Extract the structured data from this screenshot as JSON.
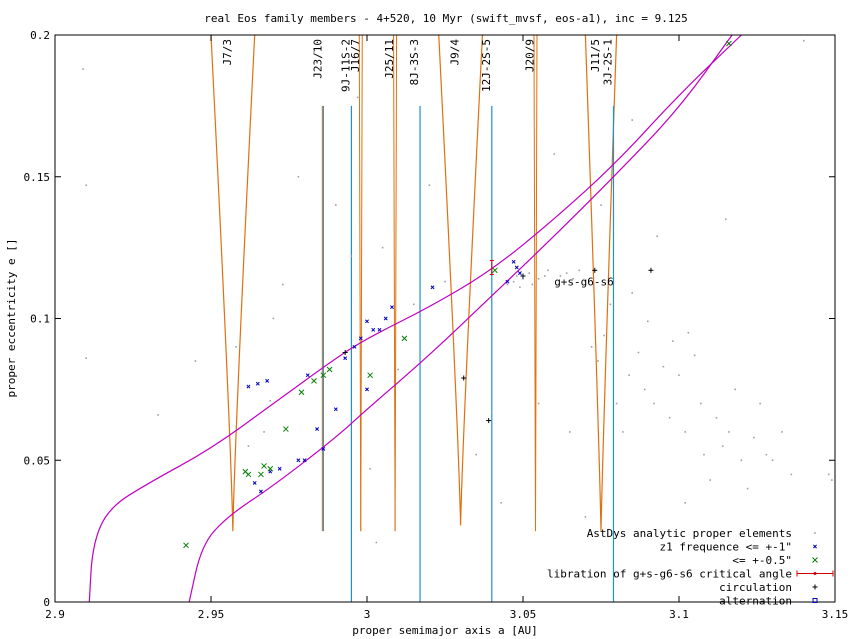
{
  "chart_data": {
    "type": "scatter",
    "title": "real Eos family members - 4+520, 10 Myr (swift_mvsf, eos-a1), inc = 9.125",
    "xlabel": "proper semimajor axis a [AU]",
    "ylabel": "proper eccentricity e []",
    "xlim": [
      2.9,
      3.15
    ],
    "ylim": [
      0,
      0.2
    ],
    "x_ticks": [
      2.9,
      2.95,
      3.0,
      3.05,
      3.1,
      3.15
    ],
    "x_tick_labels": [
      "2.9",
      "2.95",
      "3",
      "3.05",
      "3.1",
      "3.15"
    ],
    "y_ticks": [
      0,
      0.05,
      0.1,
      0.15,
      0.2
    ],
    "y_tick_labels": [
      "0",
      "0.05",
      "0.1",
      "0.15",
      "0.2"
    ],
    "grid": false,
    "legend_position": "bottom-right",
    "legend": [
      {
        "label": "AstDys analytic proper elements",
        "color": "#a0a0a0",
        "marker": "dot"
      },
      {
        "label": "z1 frequence <= +-1\"",
        "color": "#0000c0",
        "marker": "x-small"
      },
      {
        "label": "<= +-0.5\"",
        "color": "#008000",
        "marker": "x"
      },
      {
        "label": "libration of g+s-g6-s6 critical angle",
        "color": "#d00000",
        "marker": "errorbar"
      },
      {
        "label": "circulation",
        "color": "#000000",
        "marker": "plus"
      },
      {
        "label": "alternation",
        "color": "#0000c0",
        "marker": "square"
      }
    ],
    "mean_motion_resonances": [
      {
        "label": "J7/3",
        "a": 2.957,
        "kind": "wedge",
        "tip_e": 0.025,
        "top_e": 0.2,
        "half_width": 0.007
      },
      {
        "label": "J23/10",
        "a": 2.986,
        "kind": "line",
        "bottom_e": 0.025,
        "top_e": 0.175
      },
      {
        "label": "9J-11S-2",
        "a": 2.995,
        "kind": "line",
        "bottom_e": 0,
        "top_e": 0.175
      },
      {
        "label": "J16/7",
        "a": 2.998,
        "kind": "thin",
        "bottom_e": 0.025,
        "top_e": 0.2
      },
      {
        "label": "J25/11",
        "a": 3.009,
        "kind": "thin",
        "bottom_e": 0.025,
        "top_e": 0.2
      },
      {
        "label": "8J-3S-3",
        "a": 3.017,
        "kind": "line",
        "bottom_e": 0,
        "top_e": 0.175
      },
      {
        "label": "J9/4",
        "a": 3.03,
        "kind": "wedge",
        "tip_e": 0.027,
        "top_e": 0.2,
        "half_width": 0.007
      },
      {
        "label": "12J-2S-5",
        "a": 3.04,
        "kind": "line",
        "bottom_e": 0,
        "top_e": 0.175
      },
      {
        "label": "J20/9",
        "a": 3.054,
        "kind": "thin",
        "bottom_e": 0.025,
        "top_e": 0.2
      },
      {
        "label": "J11/5",
        "a": 3.075,
        "kind": "wedge",
        "tip_e": 0.025,
        "top_e": 0.2,
        "half_width": 0.005
      },
      {
        "label": "3J-2S-1",
        "a": 3.079,
        "kind": "line",
        "bottom_e": 0,
        "top_e": 0.175
      }
    ],
    "secular_resonance_label": "g+s-g6-s6",
    "secular_resonance_label_position": {
      "a": 3.06,
      "e": 0.113
    },
    "secular_curves": [
      {
        "name": "upper",
        "points": [
          [
            2.911,
            0.0
          ],
          [
            2.912,
            0.02
          ],
          [
            2.917,
            0.033
          ],
          [
            2.93,
            0.042
          ],
          [
            2.95,
            0.054
          ],
          [
            2.97,
            0.07
          ],
          [
            2.99,
            0.086
          ],
          [
            3.0,
            0.093
          ],
          [
            3.02,
            0.104
          ],
          [
            3.04,
            0.117
          ],
          [
            3.06,
            0.135
          ],
          [
            3.08,
            0.155
          ],
          [
            3.1,
            0.179
          ],
          [
            3.12,
            0.2
          ]
        ]
      },
      {
        "name": "lower",
        "points": [
          [
            2.943,
            0.0
          ],
          [
            2.947,
            0.02
          ],
          [
            2.955,
            0.03
          ],
          [
            2.97,
            0.041
          ],
          [
            2.99,
            0.058
          ],
          [
            3.0,
            0.068
          ],
          [
            3.02,
            0.087
          ],
          [
            3.04,
            0.108
          ],
          [
            3.06,
            0.129
          ],
          [
            3.08,
            0.151
          ],
          [
            3.1,
            0.174
          ],
          [
            3.117,
            0.2
          ]
        ]
      }
    ],
    "series": [
      {
        "name": "AstDys analytic proper elements",
        "points": [
          [
            2.909,
            0.188
          ],
          [
            2.91,
            0.147
          ],
          [
            2.91,
            0.086
          ],
          [
            2.933,
            0.066
          ],
          [
            2.945,
            0.085
          ],
          [
            2.958,
            0.09
          ],
          [
            2.962,
            0.055
          ],
          [
            2.967,
            0.06
          ],
          [
            2.969,
            0.071
          ],
          [
            2.97,
            0.1
          ],
          [
            2.973,
            0.112
          ],
          [
            2.978,
            0.15
          ],
          [
            2.983,
            0.194
          ],
          [
            2.985,
            0.188
          ],
          [
            2.99,
            0.14
          ],
          [
            2.995,
            0.122
          ],
          [
            2.997,
            0.178
          ],
          [
            3.001,
            0.047
          ],
          [
            3.003,
            0.021
          ],
          [
            3.005,
            0.125
          ],
          [
            3.01,
            0.082
          ],
          [
            3.015,
            0.105
          ],
          [
            3.02,
            0.147
          ],
          [
            3.025,
            0.113
          ],
          [
            3.035,
            0.052
          ],
          [
            3.04,
            0.067
          ],
          [
            3.043,
            0.035
          ],
          [
            3.045,
            0.112
          ],
          [
            3.047,
            0.113
          ],
          [
            3.048,
            0.115
          ],
          [
            3.049,
            0.111
          ],
          [
            3.05,
            0.114
          ],
          [
            3.052,
            0.116
          ],
          [
            3.053,
            0.112
          ],
          [
            3.055,
            0.114
          ],
          [
            3.057,
            0.115
          ],
          [
            3.058,
            0.117
          ],
          [
            3.06,
            0.158
          ],
          [
            3.062,
            0.115
          ],
          [
            3.064,
            0.116
          ],
          [
            3.066,
            0.114
          ],
          [
            3.068,
            0.117
          ],
          [
            3.07,
            0.113
          ],
          [
            3.072,
            0.09
          ],
          [
            3.074,
            0.085
          ],
          [
            3.076,
            0.094
          ],
          [
            3.078,
            0.105
          ],
          [
            3.08,
            0.07
          ],
          [
            3.082,
            0.06
          ],
          [
            3.084,
            0.08
          ],
          [
            3.085,
            0.109
          ],
          [
            3.087,
            0.088
          ],
          [
            3.089,
            0.075
          ],
          [
            3.09,
            0.099
          ],
          [
            3.092,
            0.07
          ],
          [
            3.093,
            0.129
          ],
          [
            3.095,
            0.083
          ],
          [
            3.097,
            0.065
          ],
          [
            3.098,
            0.092
          ],
          [
            3.1,
            0.08
          ],
          [
            3.102,
            0.06
          ],
          [
            3.103,
            0.095
          ],
          [
            3.105,
            0.087
          ],
          [
            3.107,
            0.07
          ],
          [
            3.108,
            0.052
          ],
          [
            3.11,
            0.043
          ],
          [
            3.112,
            0.065
          ],
          [
            3.114,
            0.055
          ],
          [
            3.116,
            0.06
          ],
          [
            3.118,
            0.075
          ],
          [
            3.12,
            0.05
          ],
          [
            3.122,
            0.04
          ],
          [
            3.124,
            0.058
          ],
          [
            3.126,
            0.07
          ],
          [
            3.128,
            0.052
          ],
          [
            3.13,
            0.05
          ],
          [
            3.133,
            0.06
          ],
          [
            3.136,
            0.045
          ],
          [
            3.14,
            0.198
          ],
          [
            3.148,
            0.045
          ],
          [
            3.149,
            0.043
          ],
          [
            3.07,
            0.03
          ],
          [
            3.075,
            0.14
          ],
          [
            3.085,
            0.17
          ],
          [
            3.102,
            0.035
          ],
          [
            3.115,
            0.135
          ],
          [
            3.065,
            0.06
          ],
          [
            3.055,
            0.07
          ]
        ]
      },
      {
        "name": "z1 frequence <= +-1\"",
        "points": [
          [
            2.962,
            0.076
          ],
          [
            2.965,
            0.077
          ],
          [
            2.968,
            0.078
          ],
          [
            2.964,
            0.042
          ],
          [
            2.966,
            0.039
          ],
          [
            2.969,
            0.046
          ],
          [
            2.972,
            0.047
          ],
          [
            2.978,
            0.05
          ],
          [
            2.98,
            0.05
          ],
          [
            2.981,
            0.08
          ],
          [
            2.984,
            0.061
          ],
          [
            2.986,
            0.054
          ],
          [
            2.99,
            0.068
          ],
          [
            2.993,
            0.086
          ],
          [
            2.996,
            0.09
          ],
          [
            2.998,
            0.093
          ],
          [
            3.0,
            0.099
          ],
          [
            3.002,
            0.096
          ],
          [
            3.004,
            0.096
          ],
          [
            3.006,
            0.1
          ],
          [
            3.008,
            0.104
          ],
          [
            3.021,
            0.111
          ],
          [
            3.0,
            0.075
          ],
          [
            3.045,
            0.113
          ],
          [
            3.047,
            0.12
          ],
          [
            3.048,
            0.118
          ],
          [
            3.049,
            0.116
          ]
        ]
      },
      {
        "name": "<= +-0.5\"",
        "points": [
          [
            2.942,
            0.02
          ],
          [
            2.961,
            0.046
          ],
          [
            2.962,
            0.045
          ],
          [
            2.966,
            0.045
          ],
          [
            2.967,
            0.048
          ],
          [
            2.969,
            0.047
          ],
          [
            2.974,
            0.061
          ],
          [
            2.979,
            0.074
          ],
          [
            2.983,
            0.078
          ],
          [
            2.986,
            0.08
          ],
          [
            2.988,
            0.082
          ],
          [
            3.001,
            0.08
          ],
          [
            3.012,
            0.093
          ],
          [
            3.041,
            0.117
          ],
          [
            3.116,
            0.197
          ]
        ]
      },
      {
        "name": "libration of g+s-g6-s6 critical angle",
        "points": [
          [
            3.04,
            0.118
          ]
        ]
      },
      {
        "name": "circulation",
        "points": [
          [
            2.993,
            0.088
          ],
          [
            3.031,
            0.079
          ],
          [
            3.039,
            0.064
          ],
          [
            3.05,
            0.115
          ],
          [
            3.073,
            0.117
          ],
          [
            3.091,
            0.117
          ]
        ]
      },
      {
        "name": "alternation",
        "points": []
      }
    ]
  }
}
